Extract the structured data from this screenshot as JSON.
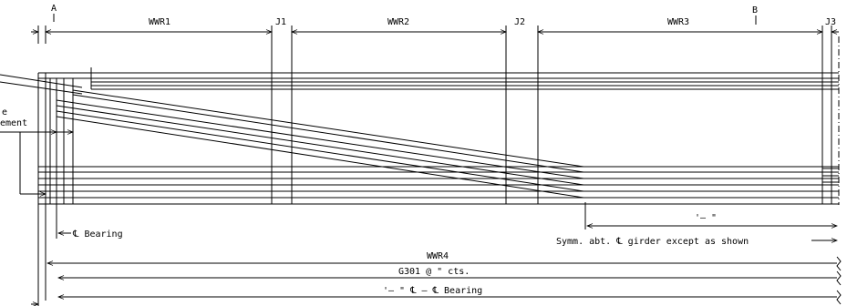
{
  "section_marks": [
    "A",
    "B"
  ],
  "segments": [
    "WWR1",
    "J1",
    "WWR2",
    "J2",
    "WWR3",
    "J3"
  ],
  "notes": {
    "left_cut_1": "e",
    "left_cut_2": "ement",
    "bearing": "℄ Bearing",
    "strand_length": "'– \"",
    "symmetry": "Symm. abt. ℄ girder except as shown",
    "wwr4": "WWR4",
    "stirrups": "G301 @  \" cts.",
    "total_length": "'– \" ℄ – ℄ Bearing"
  }
}
